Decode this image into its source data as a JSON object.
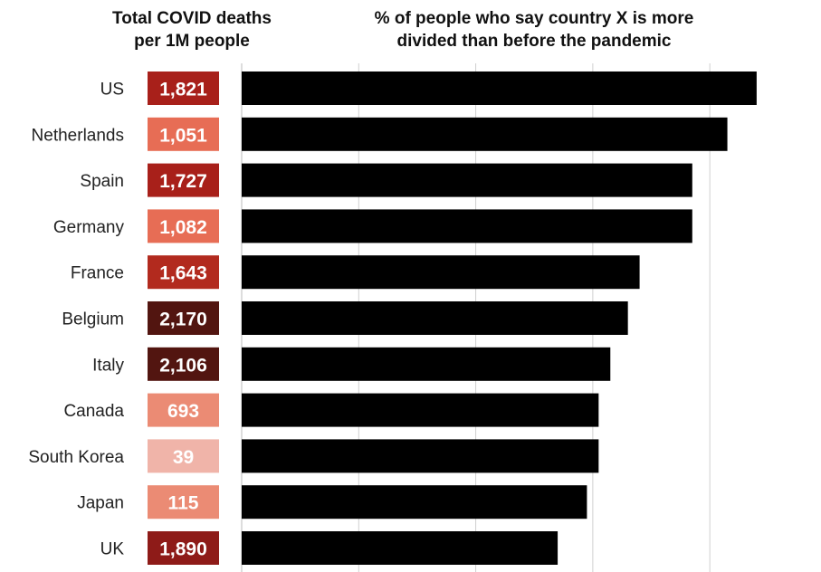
{
  "chart_data": {
    "type": "bar",
    "orientation": "horizontal",
    "titles": {
      "deaths": "Total COVID deaths\nper 1M people",
      "divided": "% of people who say country X is more\ndivided than before the pandemic"
    },
    "categories": [
      "US",
      "Netherlands",
      "Spain",
      "Germany",
      "France",
      "Belgium",
      "Italy",
      "Canada",
      "South Korea",
      "Japan",
      "UK"
    ],
    "deaths_labels": [
      "1,821",
      "1,051",
      "1,727",
      "1,082",
      "1,643",
      "2,170",
      "2,106",
      "693",
      "39",
      "115",
      "1,890"
    ],
    "deaths_values": [
      1821,
      1051,
      1727,
      1082,
      1643,
      2170,
      2106,
      693,
      39,
      115,
      1890
    ],
    "deaths_colors": [
      "#a8201a",
      "#e76d55",
      "#a8201a",
      "#e76d55",
      "#b22a1e",
      "#521510",
      "#521510",
      "#eb8b74",
      "#f0b4a9",
      "#eb8b74",
      "#8e1b18"
    ],
    "series": [
      {
        "values": [
          88,
          83,
          77,
          77,
          68,
          66,
          63,
          61,
          61,
          59,
          54
        ]
      }
    ],
    "xlim": [
      0,
      100
    ],
    "bar_color": "#000000",
    "grid": true
  }
}
